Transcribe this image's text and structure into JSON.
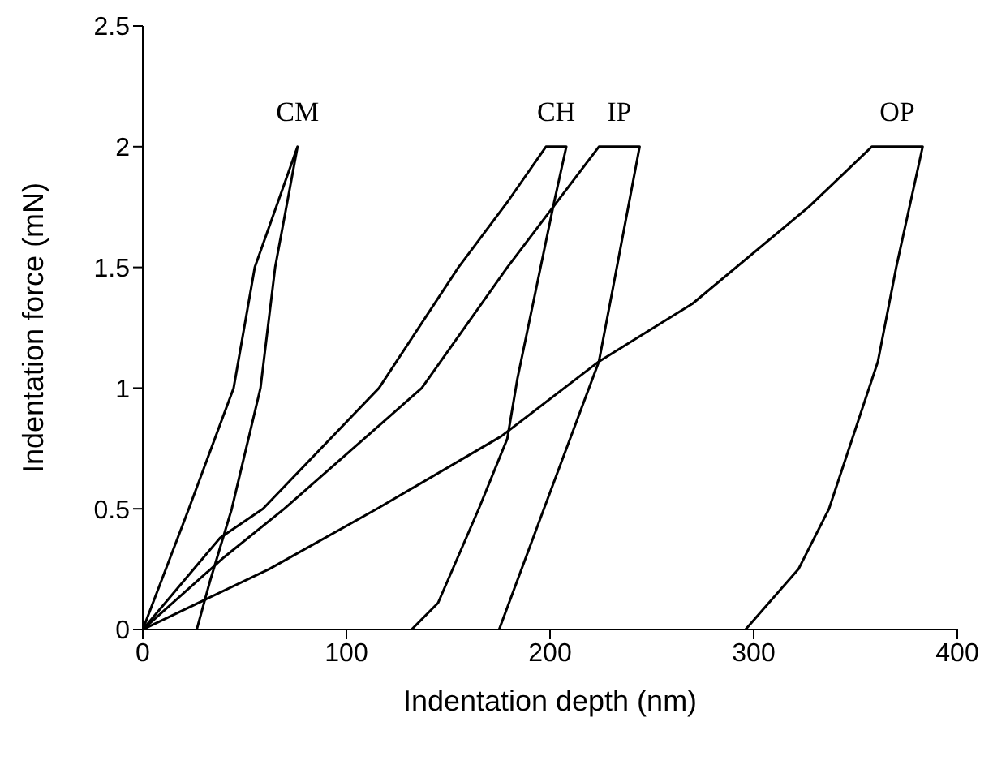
{
  "chart_data": {
    "type": "line",
    "xlabel": "Indentation depth (nm)",
    "ylabel": "Indentation force (mN)",
    "xlim": [
      0,
      400
    ],
    "xticks": [
      0,
      100,
      200,
      300,
      400
    ],
    "ylim": [
      0,
      2.5
    ],
    "yticks": [
      0,
      0.5,
      1,
      1.5,
      2,
      2.5
    ],
    "grid": false,
    "legend": false,
    "marker": "none",
    "line_style": "solid",
    "series": [
      {
        "name": "CM",
        "color": "#000000",
        "x": [
          0,
          22.6,
          44.6,
          55,
          76,
          65,
          57.8,
          43.7,
          33,
          26.5
        ],
        "values": [
          0,
          0.5,
          1,
          1.5,
          2,
          1.5,
          1,
          0.5,
          0.2,
          0
        ]
      },
      {
        "name": "CH",
        "color": "#000000",
        "x": [
          0,
          38,
          59,
          116,
          155,
          179,
          198,
          208,
          202,
          184,
          179,
          165,
          145,
          132
        ],
        "values": [
          0,
          0.38,
          0.5,
          1,
          1.5,
          1.77,
          2,
          2,
          1.77,
          1.04,
          0.79,
          0.5,
          0.11,
          0
        ]
      },
      {
        "name": "IP",
        "color": "#000000",
        "x": [
          0,
          40,
          69.5,
          137,
          179,
          224,
          244,
          231,
          224,
          197,
          175
        ],
        "values": [
          0,
          0.3,
          0.5,
          1,
          1.5,
          2,
          2,
          1.42,
          1.11,
          0.5,
          0
        ]
      },
      {
        "name": "OP",
        "color": "#000000",
        "x": [
          0,
          62,
          115,
          176,
          224,
          270,
          327,
          358,
          383,
          370,
          361,
          337,
          322,
          296
        ],
        "values": [
          0,
          0.25,
          0.5,
          0.8,
          1.11,
          1.35,
          1.75,
          2,
          2,
          1.5,
          1.11,
          0.5,
          0.25,
          0
        ]
      }
    ]
  }
}
